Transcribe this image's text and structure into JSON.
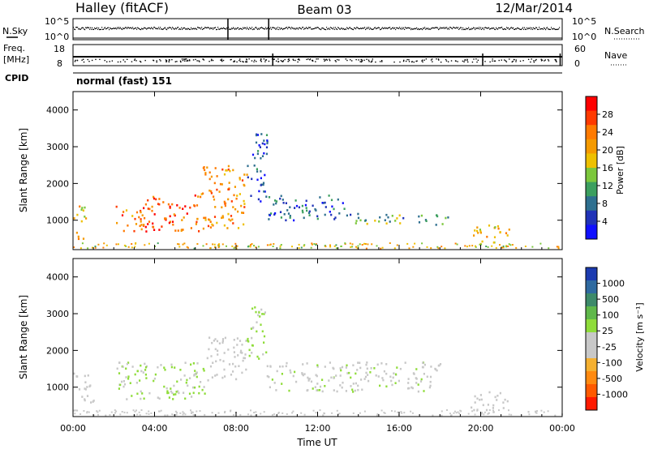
{
  "header": {
    "station": "Halley (fitACF)",
    "beam": "Beam 03",
    "date": "12/Mar/2014"
  },
  "strip_labels": {
    "nsky": "N.Sky",
    "nsearch": "N.Search",
    "freq_line1": "Freq.",
    "freq_line2": "[MHz]",
    "nave": "Nave",
    "cpid": "CPID",
    "cpid_value": "normal (fast) 151",
    "noise_ticks_left": [
      "10^5",
      "10^0"
    ],
    "noise_ticks_right": [
      "10^5",
      "10^0"
    ],
    "freq_ticks": [
      "18",
      "8"
    ],
    "nave_ticks": [
      "60",
      "0"
    ]
  },
  "colorbars": {
    "power": {
      "label": "Power [dB]",
      "ticks": [
        "28",
        "24",
        "20",
        "16",
        "12",
        "8",
        "4"
      ],
      "colors": [
        "#ff0000",
        "#ff3a00",
        "#ff7a00",
        "#f59a00",
        "#eec000",
        "#7cc73c",
        "#3c9f5f",
        "#2e6f8f",
        "#2033b8",
        "#1010ff"
      ]
    },
    "velocity": {
      "label": "Velocity [m s⁻¹]",
      "ticks": [
        "1000",
        "500",
        "100",
        "25",
        "-25",
        "-100",
        "-500",
        "-1000"
      ],
      "colors": [
        "#1c3bb0",
        "#2f6aa0",
        "#3d8a6a",
        "#5fb84a",
        "#8fdc3a",
        "#c8c8c8",
        "#c8c8c8",
        "#f5b030",
        "#ff8a10",
        "#ff5a00",
        "#ff1a00"
      ]
    }
  },
  "chart_data": [
    {
      "type": "heatmap",
      "name": "power",
      "ylabel": "Slant Range [km]",
      "xlim": [
        "00:00",
        "24:00"
      ],
      "ylim": [
        200,
        4500
      ],
      "y_ticks": [
        1000,
        2000,
        3000,
        4000
      ],
      "x_ticks": [
        "00:00",
        "04:00",
        "08:00",
        "12:00",
        "16:00",
        "20:00",
        "00:00"
      ],
      "colorbar": "Power [dB]",
      "colorbar_range": [
        0,
        32
      ],
      "regions": [
        {
          "t": [
            0.0,
            0.6
          ],
          "range": [
            500,
            1500
          ],
          "level": 18
        },
        {
          "t": [
            2.0,
            3.5
          ],
          "range": [
            700,
            1400
          ],
          "level": 24
        },
        {
          "t": [
            3.5,
            6.2
          ],
          "range": [
            700,
            1700
          ],
          "level": 26
        },
        {
          "t": [
            6.2,
            8.5
          ],
          "range": [
            800,
            2500
          ],
          "level": 22
        },
        {
          "t": [
            8.5,
            9.5
          ],
          "range": [
            1500,
            3400
          ],
          "level": 6
        },
        {
          "t": [
            9.5,
            13.5
          ],
          "range": [
            1000,
            1700
          ],
          "level": 7
        },
        {
          "t": [
            13.5,
            18.5
          ],
          "range": [
            900,
            1200
          ],
          "level": 12
        },
        {
          "t": [
            19.5,
            21.5
          ],
          "range": [
            400,
            900
          ],
          "level": 18
        }
      ]
    },
    {
      "type": "heatmap",
      "name": "velocity",
      "ylabel": "Slant Range [km]",
      "xlabel": "Time UT",
      "xlim": [
        "00:00",
        "24:00"
      ],
      "ylim": [
        200,
        4500
      ],
      "y_ticks": [
        1000,
        2000,
        3000,
        4000
      ],
      "x_ticks": [
        "00:00",
        "04:00",
        "08:00",
        "12:00",
        "16:00",
        "20:00",
        "00:00"
      ],
      "colorbar": "Velocity [m s⁻¹]",
      "colorbar_range": [
        -1000,
        1000
      ],
      "regions": [
        {
          "t": [
            0.0,
            1.0
          ],
          "range": [
            600,
            1400
          ],
          "level": -100
        },
        {
          "t": [
            2.0,
            6.5
          ],
          "range": [
            700,
            1700
          ],
          "level": 100
        },
        {
          "t": [
            6.5,
            8.5
          ],
          "range": [
            1200,
            2400
          ],
          "level": -100
        },
        {
          "t": [
            8.5,
            9.5
          ],
          "range": [
            1800,
            3200
          ],
          "level": 100
        },
        {
          "t": [
            9.5,
            18.0
          ],
          "range": [
            900,
            1700
          ],
          "level": 0
        },
        {
          "t": [
            19.5,
            21.5
          ],
          "range": [
            400,
            900
          ],
          "level": -100
        }
      ]
    }
  ]
}
